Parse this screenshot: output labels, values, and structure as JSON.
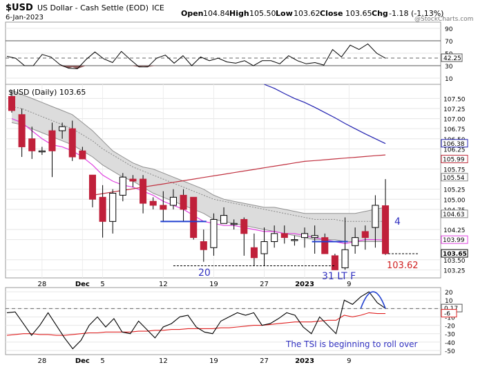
{
  "header": {
    "symbol": "$USD",
    "name": "US Dollar - Cash Settle (EOD)",
    "exchange": "ICE",
    "date": "6-Jan-2023",
    "watermark": "@StockCharts.com",
    "open_label": "Open",
    "open": "104.84",
    "high_label": "High",
    "high": "105.50",
    "low_label": "Low",
    "low": "103.62",
    "close_label": "Close",
    "close": "103.65",
    "chg_label": "Chg",
    "chg": "-1.18 (-1.13%)"
  },
  "chart_data": [
    {
      "type": "line",
      "panel": "rsi",
      "ylim": [
        0,
        100
      ],
      "tick_labels": [
        "90",
        "70",
        "50",
        "30",
        "10"
      ],
      "ticks": [
        90,
        70,
        50,
        30,
        10
      ],
      "ref_lines": [
        70,
        30
      ],
      "current_label": "42.25",
      "values": [
        45,
        42,
        30,
        30,
        48,
        44,
        32,
        26,
        25,
        40,
        52,
        41,
        35,
        53,
        40,
        28,
        28,
        42,
        47,
        34,
        46,
        30,
        44,
        38,
        42,
        36,
        34,
        38,
        30,
        38,
        38,
        33,
        46,
        38,
        33,
        35,
        31,
        56,
        44,
        63,
        56,
        65,
        50,
        42
      ]
    },
    {
      "type": "candlestick",
      "panel": "price",
      "title": "$USD (Daily) 103.65",
      "ylim": [
        103.05,
        107.85
      ],
      "y_ticks": [
        107.5,
        107.25,
        107.0,
        106.75,
        106.5,
        106.25,
        105.75,
        105.25,
        105.0,
        104.75,
        104.25,
        104.0,
        103.5,
        103.25
      ],
      "y_tick_labels": [
        "107.50",
        "107.25",
        "107.00",
        "106.75",
        "106.50",
        "106.25",
        "105.75",
        "105.25",
        "105.00",
        "104.75",
        "104.25",
        "104.00",
        "103.50",
        "103.25"
      ],
      "x_tick_labels": [
        "28",
        "Dec",
        "5",
        "12",
        "19",
        "27",
        "2023",
        "9"
      ],
      "x_tick_index": [
        3,
        7,
        9,
        15,
        20,
        25,
        29,
        33
      ],
      "candles": [
        [
          107.55,
          107.2,
          107.7,
          107.15
        ],
        [
          107.1,
          106.3,
          107.25,
          106.05
        ],
        [
          106.5,
          106.2,
          106.8,
          106.0
        ],
        [
          106.2,
          106.2,
          106.3,
          106.1
        ],
        [
          106.7,
          106.2,
          106.9,
          105.55
        ],
        [
          106.7,
          106.8,
          106.9,
          106.5
        ],
        [
          106.75,
          106.05,
          106.95,
          105.95
        ],
        [
          106.2,
          106.0,
          106.3,
          106.0
        ],
        [
          105.6,
          105.0,
          105.6,
          104.8
        ],
        [
          105.05,
          104.45,
          105.35,
          104.05
        ],
        [
          104.45,
          105.15,
          105.25,
          104.15
        ],
        [
          105.1,
          105.55,
          105.65,
          104.95
        ],
        [
          105.5,
          105.45,
          105.6,
          105.3
        ],
        [
          105.5,
          104.9,
          105.6,
          104.65
        ],
        [
          104.95,
          104.85,
          105.05,
          104.75
        ],
        [
          104.85,
          104.75,
          105.2,
          104.45
        ],
        [
          104.85,
          105.05,
          105.25,
          104.75
        ],
        [
          105.1,
          104.75,
          105.25,
          104.45
        ],
        [
          105.05,
          104.05,
          105.05,
          104.0
        ],
        [
          103.95,
          103.75,
          104.25,
          103.45
        ],
        [
          103.8,
          104.5,
          104.65,
          103.6
        ],
        [
          104.4,
          104.6,
          104.8,
          104.4
        ],
        [
          104.4,
          104.4,
          104.5,
          104.25
        ],
        [
          104.5,
          104.15,
          104.55,
          103.6
        ],
        [
          103.8,
          103.55,
          104.15,
          103.35
        ],
        [
          103.65,
          103.95,
          104.3,
          103.35
        ],
        [
          103.95,
          104.15,
          104.35,
          103.8
        ],
        [
          104.15,
          104.05,
          104.35,
          103.9
        ],
        [
          104.0,
          104.0,
          104.1,
          103.85
        ],
        [
          104.05,
          104.15,
          104.3,
          103.8
        ],
        [
          104.05,
          104.1,
          104.35,
          103.65
        ],
        [
          104.05,
          103.65,
          104.15,
          103.65
        ],
        [
          103.6,
          103.25,
          103.65,
          103.25
        ],
        [
          103.3,
          103.75,
          104.55,
          103.25
        ],
        [
          103.85,
          104.05,
          104.3,
          103.65
        ],
        [
          104.2,
          104.05,
          104.35,
          103.75
        ],
        [
          104.3,
          104.85,
          105.1,
          103.8
        ],
        [
          104.84,
          103.65,
          105.5,
          103.62
        ]
      ],
      "series": [
        {
          "name": "Upper Band",
          "color": "#808080",
          "values": [
            107.7,
            107.6,
            107.5,
            107.4,
            107.3,
            107.2,
            107.1,
            106.9,
            106.7,
            106.45,
            106.2,
            106.05,
            105.9,
            105.8,
            105.75,
            105.65,
            105.55,
            105.45,
            105.35,
            105.25,
            105.1,
            105.0,
            104.95,
            104.9,
            104.85,
            104.8,
            104.8,
            104.75,
            104.7,
            104.65,
            104.65,
            104.65,
            104.65,
            104.65,
            104.65,
            104.7,
            104.75,
            104.8
          ]
        },
        {
          "name": "Middle Band",
          "color": "#808080",
          "values": [
            107.3,
            107.25,
            107.15,
            107.05,
            106.95,
            106.85,
            106.75,
            106.6,
            106.45,
            106.25,
            106.1,
            105.95,
            105.8,
            105.7,
            105.6,
            105.5,
            105.4,
            105.3,
            105.2,
            105.1,
            105.0,
            104.95,
            104.9,
            104.85,
            104.8,
            104.75,
            104.7,
            104.65,
            104.6,
            104.55,
            104.5,
            104.5,
            104.5,
            104.45,
            104.45,
            104.45,
            104.45,
            104.45
          ]
        },
        {
          "name": "Lower Band",
          "color": "#808080",
          "values": [
            106.9,
            106.85,
            106.75,
            106.65,
            106.55,
            106.45,
            106.35,
            106.2,
            106.05,
            105.85,
            105.7,
            105.55,
            105.45,
            105.3,
            105.15,
            105.05,
            104.95,
            104.85,
            104.75,
            104.65,
            104.5,
            104.45,
            104.4,
            104.35,
            104.3,
            104.25,
            104.2,
            104.15,
            104.1,
            104.05,
            104.0,
            104.0,
            104.0,
            103.95,
            103.95,
            103.95,
            103.95,
            103.95
          ]
        },
        {
          "name": "Pink MA",
          "color": "#e040e0",
          "values": [
            107.0,
            106.9,
            106.7,
            106.5,
            106.35,
            106.3,
            106.2,
            106.05,
            105.85,
            105.6,
            105.45,
            105.35,
            105.3,
            105.2,
            105.1,
            104.95,
            104.85,
            104.75,
            104.6,
            104.45,
            104.4,
            104.35,
            104.35,
            104.3,
            104.25,
            104.2,
            104.2,
            104.15,
            104.15,
            104.1,
            104.05,
            104.0,
            103.95,
            103.9,
            103.95,
            104.0,
            104.0,
            103.99
          ]
        },
        {
          "name": "Red MA",
          "color": "#c0303f",
          "values": [
            null,
            null,
            null,
            null,
            null,
            null,
            null,
            null,
            105.1,
            105.14,
            105.18,
            105.22,
            105.26,
            105.3,
            105.34,
            105.38,
            105.42,
            105.46,
            105.5,
            105.54,
            105.58,
            105.62,
            105.66,
            105.7,
            105.74,
            105.78,
            105.82,
            105.86,
            105.9,
            105.94,
            105.96,
            105.98,
            106.0,
            106.02,
            106.04,
            106.06,
            106.08,
            106.1
          ]
        },
        {
          "name": "Blue MA",
          "color": "#2020b0",
          "values": [
            null,
            null,
            null,
            null,
            null,
            null,
            null,
            null,
            null,
            null,
            null,
            null,
            null,
            null,
            null,
            null,
            null,
            null,
            null,
            null,
            null,
            null,
            null,
            null,
            null,
            107.85,
            107.75,
            107.62,
            107.5,
            107.4,
            107.28,
            107.15,
            107.02,
            106.88,
            106.75,
            106.62,
            106.5,
            106.38
          ]
        }
      ],
      "price_tags": [
        {
          "label": "106.38",
          "value": 106.38,
          "color": "#2020b0"
        },
        {
          "label": "105.99",
          "value": 105.99,
          "color": "#c0303f"
        },
        {
          "label": "105.54",
          "value": 105.54,
          "color": "#808080"
        },
        {
          "label": "104.63",
          "value": 104.63,
          "color": "#808080"
        },
        {
          "label": "103.99",
          "value": 103.99,
          "color": "#e040e0"
        },
        {
          "label": "103.65",
          "value": 103.65,
          "color": "#000000"
        }
      ],
      "annotations": [
        {
          "text": "4",
          "color": "#3030c0"
        },
        {
          "text": "20",
          "color": "#3030c0"
        },
        {
          "text": "31 LT F",
          "color": "#3030c0"
        },
        {
          "text": "103.62",
          "color": "#d02020"
        }
      ]
    },
    {
      "type": "line",
      "panel": "tsi",
      "ylim": [
        -55,
        25
      ],
      "tick_labels": [
        "20",
        "10",
        "0",
        "-10",
        "-20",
        "-30",
        "-40",
        "-50"
      ],
      "ticks": [
        20,
        10,
        0,
        -10,
        -20,
        -30,
        -40,
        -50
      ],
      "current_label": "0.17",
      "signal_label": "-6",
      "annotation": "The TSI is beginning to roll over",
      "series": [
        {
          "name": "TSI",
          "color": "#000000",
          "values": [
            -5,
            -4,
            -18,
            -32,
            -20,
            -5,
            -20,
            -35,
            -48,
            -38,
            -20,
            -10,
            -22,
            -12,
            -28,
            -30,
            -15,
            -25,
            -35,
            -22,
            -18,
            -10,
            -8,
            -22,
            -28,
            -30,
            -15,
            -10,
            -5,
            -8,
            -5,
            -20,
            -18,
            -12,
            -5,
            -8,
            -22,
            -30,
            -10,
            -20,
            -30,
            10,
            5,
            14,
            20,
            7,
            0.17
          ]
        },
        {
          "name": "Signal",
          "color": "#e02020",
          "values": [
            -32,
            -31,
            -30,
            -30,
            -31,
            -31,
            -32,
            -32,
            -31,
            -30,
            -29,
            -29,
            -28,
            -28,
            -28,
            -28,
            -27,
            -27,
            -26,
            -26,
            -25,
            -25,
            -24,
            -24,
            -24,
            -24,
            -23,
            -23,
            -22,
            -21,
            -20,
            -20,
            -19,
            -18,
            -17,
            -16,
            -16,
            -16,
            -15,
            -14,
            -14,
            -8,
            -10,
            -8,
            -5,
            -6,
            -6
          ]
        }
      ]
    }
  ],
  "tsi_x_tick_labels": [
    "28",
    "Dec",
    "5",
    "12",
    "19",
    "27",
    "2023",
    "9"
  ],
  "colors": {
    "up": "#ffffff",
    "down": "#c0203a",
    "band_fill": "#dcdcdc",
    "grid": "#e6e6e6",
    "blue_annot": "#3030c0"
  }
}
